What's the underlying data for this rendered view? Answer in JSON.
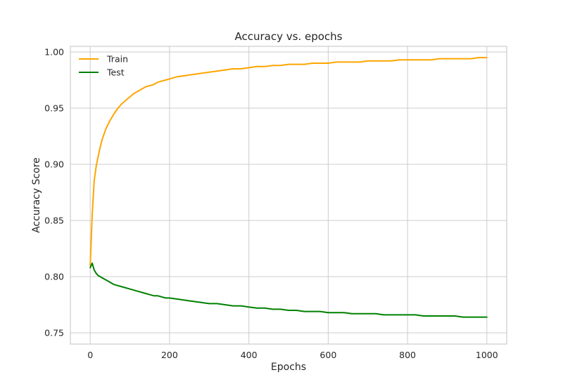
{
  "chart_data": {
    "type": "line",
    "title": "Accuracy vs. epochs",
    "xlabel": "Epochs",
    "ylabel": "Accuracy Score",
    "xlim": [
      -50,
      1050
    ],
    "ylim": [
      0.74,
      1.005
    ],
    "xticks": [
      0,
      200,
      400,
      600,
      800,
      1000
    ],
    "yticks": [
      0.75,
      0.8,
      0.85,
      0.9,
      0.95,
      1.0
    ],
    "xtick_labels": [
      "0",
      "200",
      "400",
      "600",
      "800",
      "1000"
    ],
    "ytick_labels": [
      "0.75",
      "0.80",
      "0.85",
      "0.90",
      "0.95",
      "1.00"
    ],
    "grid": true,
    "legend_position": "top-left",
    "series": [
      {
        "name": "Train",
        "color": "#ffa500",
        "x": [
          0,
          5,
          10,
          15,
          20,
          25,
          30,
          40,
          50,
          60,
          70,
          80,
          90,
          100,
          110,
          120,
          130,
          140,
          150,
          160,
          170,
          180,
          190,
          200,
          220,
          240,
          260,
          280,
          300,
          320,
          340,
          360,
          380,
          400,
          420,
          440,
          460,
          480,
          500,
          520,
          540,
          560,
          580,
          600,
          620,
          640,
          660,
          680,
          700,
          720,
          740,
          760,
          780,
          800,
          820,
          840,
          860,
          880,
          900,
          920,
          940,
          960,
          980,
          1000
        ],
        "values": [
          0.81,
          0.855,
          0.885,
          0.898,
          0.907,
          0.915,
          0.922,
          0.932,
          0.939,
          0.945,
          0.95,
          0.954,
          0.957,
          0.96,
          0.963,
          0.965,
          0.967,
          0.969,
          0.97,
          0.971,
          0.973,
          0.974,
          0.975,
          0.976,
          0.978,
          0.979,
          0.98,
          0.981,
          0.982,
          0.983,
          0.984,
          0.985,
          0.985,
          0.986,
          0.987,
          0.987,
          0.988,
          0.988,
          0.989,
          0.989,
          0.989,
          0.99,
          0.99,
          0.99,
          0.991,
          0.991,
          0.991,
          0.991,
          0.992,
          0.992,
          0.992,
          0.992,
          0.993,
          0.993,
          0.993,
          0.993,
          0.993,
          0.994,
          0.994,
          0.994,
          0.994,
          0.994,
          0.995,
          0.995
        ]
      },
      {
        "name": "Test",
        "color": "#008000",
        "x": [
          0,
          5,
          10,
          15,
          20,
          25,
          30,
          40,
          50,
          60,
          70,
          80,
          90,
          100,
          110,
          120,
          130,
          140,
          150,
          160,
          170,
          180,
          190,
          200,
          220,
          240,
          260,
          280,
          300,
          320,
          340,
          360,
          380,
          400,
          420,
          440,
          460,
          480,
          500,
          520,
          540,
          560,
          580,
          600,
          620,
          640,
          660,
          680,
          700,
          720,
          740,
          760,
          780,
          800,
          820,
          840,
          860,
          880,
          900,
          920,
          940,
          960,
          980,
          1000
        ],
        "values": [
          0.808,
          0.812,
          0.806,
          0.803,
          0.801,
          0.8,
          0.799,
          0.797,
          0.795,
          0.793,
          0.792,
          0.791,
          0.79,
          0.789,
          0.788,
          0.787,
          0.786,
          0.785,
          0.784,
          0.783,
          0.783,
          0.782,
          0.781,
          0.781,
          0.78,
          0.779,
          0.778,
          0.777,
          0.776,
          0.776,
          0.775,
          0.774,
          0.774,
          0.773,
          0.772,
          0.772,
          0.771,
          0.771,
          0.77,
          0.77,
          0.769,
          0.769,
          0.769,
          0.768,
          0.768,
          0.768,
          0.767,
          0.767,
          0.767,
          0.767,
          0.766,
          0.766,
          0.766,
          0.766,
          0.766,
          0.765,
          0.765,
          0.765,
          0.765,
          0.765,
          0.764,
          0.764,
          0.764,
          0.764
        ]
      }
    ]
  }
}
